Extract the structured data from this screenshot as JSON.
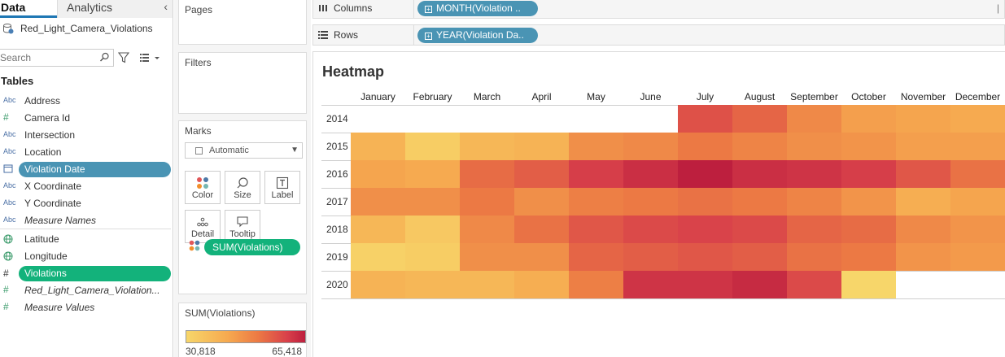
{
  "tabs": {
    "data": "Data",
    "analytics": "Analytics",
    "collapse": "‹"
  },
  "datasource": {
    "name": "Red_Light_Camera_Violations"
  },
  "search": {
    "placeholder": "Search"
  },
  "tables_heading": "Tables",
  "fields": [
    {
      "type": "Abc",
      "name": "Address",
      "style": "plain"
    },
    {
      "type": "#",
      "name": "Camera Id",
      "style": "plain"
    },
    {
      "type": "Abc",
      "name": "Intersection",
      "style": "plain"
    },
    {
      "type": "Abc",
      "name": "Location",
      "style": "plain"
    },
    {
      "type": "date",
      "name": "Violation Date",
      "style": "blue-pill"
    },
    {
      "type": "Abc",
      "name": "X Coordinate",
      "style": "plain"
    },
    {
      "type": "Abc",
      "name": "Y Coordinate",
      "style": "plain"
    },
    {
      "type": "Abc",
      "name": "Measure Names",
      "style": "italic"
    },
    {
      "type": "globe",
      "name": "Latitude",
      "style": "plain"
    },
    {
      "type": "globe",
      "name": "Longitude",
      "style": "plain"
    },
    {
      "type": "#",
      "name": "Violations",
      "style": "green-pill"
    },
    {
      "type": "#",
      "name": "Red_Light_Camera_Violation...",
      "style": "italic"
    },
    {
      "type": "#",
      "name": "Measure Values",
      "style": "italic"
    }
  ],
  "shelves": {
    "pages": "Pages",
    "filters": "Filters",
    "marks": "Marks",
    "mark_type": "Automatic",
    "mark_buttons": {
      "color": "Color",
      "size": "Size",
      "label": "Label",
      "detail": "Detail",
      "tooltip": "Tooltip"
    },
    "marks_pill": "SUM(Violations)",
    "columns_label": "Columns",
    "columns_pill": "MONTH(Violation ..",
    "rows_label": "Rows",
    "rows_pill": "YEAR(Violation Da.."
  },
  "legend": {
    "title": "SUM(Violations)",
    "min": "30,818",
    "max": "65,418",
    "colors": [
      "#f7d66a",
      "#bd1f3e"
    ]
  },
  "viz": {
    "title": "Heatmap"
  },
  "chart_data": {
    "type": "heatmap",
    "title": "Heatmap",
    "x": [
      "January",
      "February",
      "March",
      "April",
      "May",
      "June",
      "July",
      "August",
      "September",
      "October",
      "November",
      "December"
    ],
    "y": [
      "2014",
      "2015",
      "2016",
      "2017",
      "2018",
      "2019",
      "2020"
    ],
    "value_range": [
      30818,
      65418
    ],
    "color_scale": [
      "#f7d66a",
      "#bd1f3e"
    ],
    "z": [
      [
        null,
        null,
        null,
        null,
        null,
        null,
        56000,
        53000,
        47000,
        43000,
        42000,
        41000
      ],
      [
        39000,
        33000,
        38000,
        39000,
        46000,
        47000,
        50000,
        48000,
        46000,
        45000,
        43000,
        43000
      ],
      [
        42000,
        41000,
        52000,
        54000,
        59000,
        62000,
        65418,
        62000,
        61000,
        59000,
        55000,
        51000
      ],
      [
        46000,
        46000,
        50000,
        46000,
        49000,
        50000,
        51000,
        50000,
        48000,
        45000,
        40000,
        42000
      ],
      [
        38000,
        34000,
        47000,
        51000,
        55000,
        57000,
        58000,
        57000,
        53000,
        52000,
        47000,
        45000
      ],
      [
        32000,
        33000,
        46000,
        46000,
        53000,
        54000,
        55000,
        54000,
        51000,
        50000,
        45000,
        44000
      ],
      [
        39000,
        38000,
        38000,
        40000,
        49000,
        61000,
        61000,
        63000,
        57000,
        30818,
        null,
        null
      ]
    ]
  }
}
